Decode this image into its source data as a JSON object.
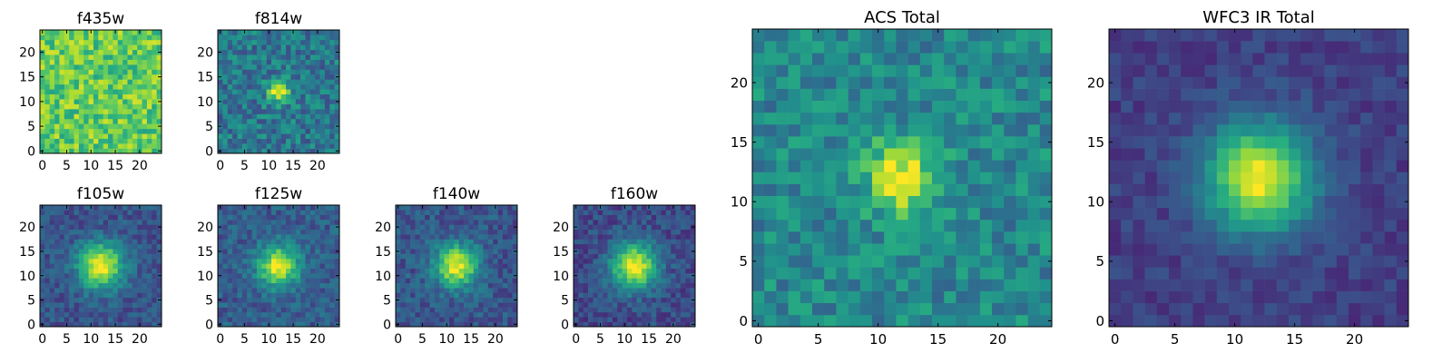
{
  "chart_data": [
    {
      "type": "heatmap",
      "title": "f435w",
      "xlabel": "",
      "ylabel": "",
      "xlim": [
        0,
        25
      ],
      "ylim": [
        0,
        25
      ],
      "xticks": [
        "0",
        "5",
        "10",
        "15",
        "20"
      ],
      "yticks": [
        "0",
        "5",
        "10",
        "15",
        "20"
      ],
      "grid": false,
      "colormap": "viridis",
      "values": "25x25 pixel cutout; noise-dominated field with no visible central source (background colour range yellow-green)"
    },
    {
      "type": "heatmap",
      "title": "f814w",
      "xlabel": "",
      "ylabel": "",
      "xlim": [
        0,
        25
      ],
      "ylim": [
        0,
        25
      ],
      "xticks": [
        "0",
        "5",
        "10",
        "15",
        "20"
      ],
      "yticks": [
        "0",
        "5",
        "10",
        "15",
        "20"
      ],
      "grid": false,
      "colormap": "viridis",
      "values": "25x25 pixel cutout; compact source peaking near (12, 12) on a noisy teal background"
    },
    {
      "type": "heatmap",
      "title": "f105w",
      "xlabel": "",
      "ylabel": "",
      "xlim": [
        0,
        25
      ],
      "ylim": [
        0,
        25
      ],
      "xticks": [
        "0",
        "5",
        "10",
        "15",
        "20"
      ],
      "yticks": [
        "0",
        "5",
        "10",
        "15",
        "20"
      ],
      "grid": false,
      "colormap": "viridis",
      "values": "25x25 pixel cutout; extended source peaking near (12, 12)"
    },
    {
      "type": "heatmap",
      "title": "f125w",
      "xlabel": "",
      "ylabel": "",
      "xlim": [
        0,
        25
      ],
      "ylim": [
        0,
        25
      ],
      "xticks": [
        "0",
        "5",
        "10",
        "15",
        "20"
      ],
      "yticks": [
        "0",
        "5",
        "10",
        "15",
        "20"
      ],
      "grid": false,
      "colormap": "viridis",
      "values": "25x25 pixel cutout; extended source peaking near (12, 12)"
    },
    {
      "type": "heatmap",
      "title": "f140w",
      "xlabel": "",
      "ylabel": "",
      "xlim": [
        0,
        25
      ],
      "ylim": [
        0,
        25
      ],
      "xticks": [
        "0",
        "5",
        "10",
        "15",
        "20"
      ],
      "yticks": [
        "0",
        "5",
        "10",
        "15",
        "20"
      ],
      "grid": false,
      "colormap": "viridis",
      "values": "25x25 pixel cutout; extended source peaking near (12, 12)"
    },
    {
      "type": "heatmap",
      "title": "f160w",
      "xlabel": "",
      "ylabel": "",
      "xlim": [
        0,
        25
      ],
      "ylim": [
        0,
        25
      ],
      "xticks": [
        "0",
        "5",
        "10",
        "15",
        "20"
      ],
      "yticks": [
        "0",
        "5",
        "10",
        "15",
        "20"
      ],
      "grid": false,
      "colormap": "viridis",
      "values": "25x25 pixel cutout; extended source peaking near (12, 12)"
    },
    {
      "type": "heatmap",
      "title": "ACS Total",
      "xlabel": "",
      "ylabel": "",
      "xlim": [
        0,
        25
      ],
      "ylim": [
        0,
        25
      ],
      "xticks": [
        "0",
        "5",
        "10",
        "15",
        "20"
      ],
      "yticks": [
        "0",
        "5",
        "10",
        "15",
        "20"
      ],
      "grid": false,
      "colormap": "viridis",
      "values": "25x25 pixel cutout; source peaking near (12, 12) on a noisy green-teal background"
    },
    {
      "type": "heatmap",
      "title": "WFC3 IR Total",
      "xlabel": "",
      "ylabel": "",
      "xlim": [
        0,
        25
      ],
      "ylim": [
        0,
        25
      ],
      "xticks": [
        "0",
        "5",
        "10",
        "15",
        "20"
      ],
      "yticks": [
        "0",
        "5",
        "10",
        "15",
        "20"
      ],
      "grid": false,
      "colormap": "viridis",
      "values": "25x25 pixel cutout; smooth source peaking near (12, 12) on a dark blue background"
    }
  ]
}
